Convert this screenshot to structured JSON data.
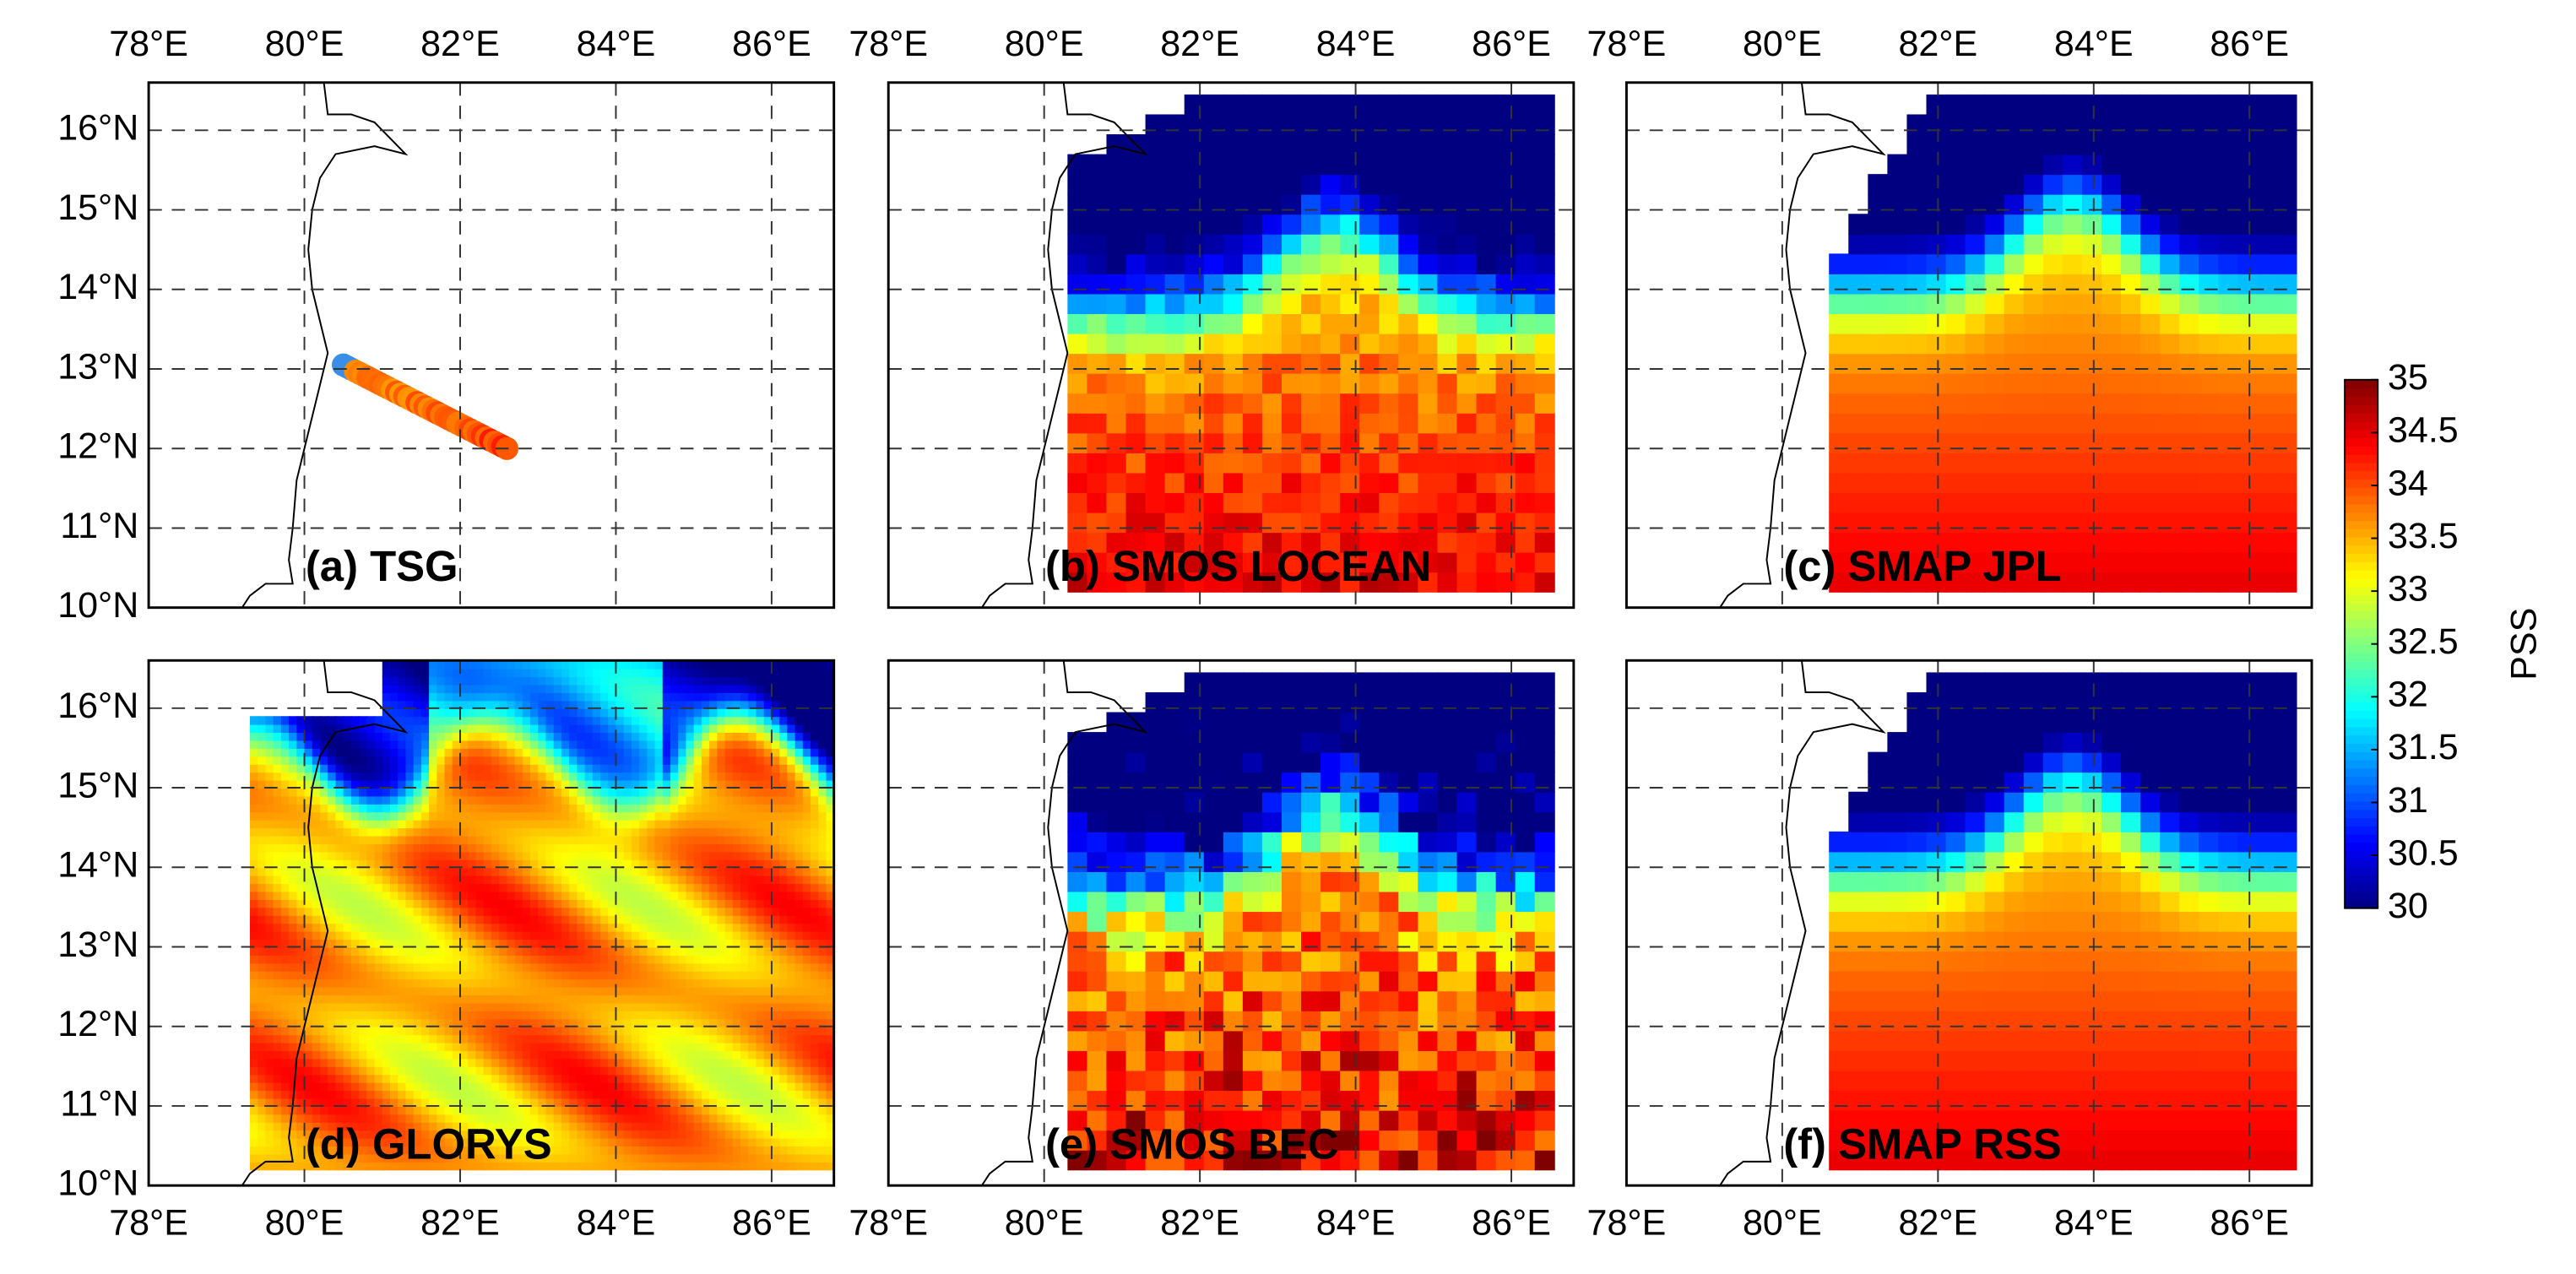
{
  "panels": [
    {
      "label": "(a) TSG"
    },
    {
      "label": "(b) SMOS LOCEAN"
    },
    {
      "label": "(c) SMAP JPL"
    },
    {
      "label": "(d) GLORYS"
    },
    {
      "label": "(e) SMOS BEC"
    },
    {
      "label": "(f) SMAP RSS"
    }
  ],
  "xlim": [
    78,
    86.8
  ],
  "ylim": [
    10,
    16.6
  ],
  "lon_ticks": [
    {
      "value": 78,
      "label": "78°E"
    },
    {
      "value": 80,
      "label": "80°E"
    },
    {
      "value": 82,
      "label": "82°E"
    },
    {
      "value": 84,
      "label": "84°E"
    },
    {
      "value": 86,
      "label": "86°E"
    }
  ],
  "lat_ticks": [
    {
      "value": 10,
      "label": "10°N"
    },
    {
      "value": 11,
      "label": "11°N"
    },
    {
      "value": 12,
      "label": "12°N"
    },
    {
      "value": 13,
      "label": "13°N"
    },
    {
      "value": 14,
      "label": "14°N"
    },
    {
      "value": 15,
      "label": "15°N"
    },
    {
      "value": 16,
      "label": "16°N"
    }
  ],
  "colorbar": {
    "label": "PSS",
    "lim": [
      30,
      35
    ],
    "ticks": [
      30,
      30.5,
      31,
      31.5,
      32,
      32.5,
      33,
      33.5,
      34,
      34.5,
      35
    ]
  }
}
